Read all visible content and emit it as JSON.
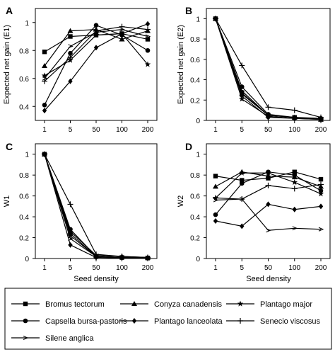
{
  "chart_data": [
    {
      "type": "line",
      "panel_label": "A",
      "xlabel": "",
      "ylabel": "Expected net gain (E1)",
      "categories": [
        "1",
        "5",
        "50",
        "100",
        "200"
      ],
      "ylim": [
        0.3,
        1.1
      ],
      "yticks": [
        "0.4",
        "0.6",
        "0.8",
        "1"
      ],
      "series": [
        {
          "name": "Bromus tectorum",
          "values": [
            0.79,
            0.9,
            0.91,
            0.92,
            0.88
          ]
        },
        {
          "name": "Conyza canadensis",
          "values": [
            0.69,
            0.94,
            0.95,
            0.88,
            0.94
          ]
        },
        {
          "name": "Plantago major",
          "values": [
            0.62,
            0.73,
            0.91,
            0.92,
            0.7
          ]
        },
        {
          "name": "Capsella bursa-pastoris",
          "values": [
            0.41,
            0.78,
            0.98,
            0.91,
            0.8
          ]
        },
        {
          "name": "Plantago lanceolata",
          "values": [
            0.37,
            0.58,
            0.82,
            0.92,
            0.99
          ]
        },
        {
          "name": "Senecio viscosus",
          "values": [
            0.58,
            0.75,
            0.94,
            0.97,
            0.95
          ]
        },
        {
          "name": "Silene anglica",
          "values": [
            0.6,
            0.83,
            0.93,
            0.95,
            0.9
          ]
        }
      ]
    },
    {
      "type": "line",
      "panel_label": "B",
      "xlabel": "",
      "ylabel": "Expected net gain (E2)",
      "categories": [
        "1",
        "5",
        "50",
        "100",
        "200"
      ],
      "ylim": [
        0,
        1.1
      ],
      "yticks": [
        "0",
        "0.2",
        "0.4",
        "0.6",
        "0.8",
        "1"
      ],
      "series": [
        {
          "name": "Bromus tectorum",
          "values": [
            1,
            0.27,
            0.05,
            0.03,
            0.01
          ]
        },
        {
          "name": "Conyza canadensis",
          "values": [
            1,
            0.26,
            0.05,
            0.03,
            0.01
          ]
        },
        {
          "name": "Plantago major",
          "values": [
            1,
            0.21,
            0.04,
            0.02,
            0.01
          ]
        },
        {
          "name": "Capsella bursa-pastoris",
          "values": [
            1,
            0.33,
            0.06,
            0.03,
            0.02
          ]
        },
        {
          "name": "Plantago lanceolata",
          "values": [
            1,
            0.24,
            0.03,
            0.02,
            0.01
          ]
        },
        {
          "name": "Senecio viscosus",
          "values": [
            1,
            0.54,
            0.13,
            0.1,
            0.03
          ]
        },
        {
          "name": "Silene anglica",
          "values": [
            1,
            0.29,
            0.05,
            0.03,
            0.01
          ]
        }
      ]
    },
    {
      "type": "line",
      "panel_label": "C",
      "xlabel": "Seed density",
      "ylabel": "W1",
      "categories": [
        "1",
        "5",
        "50",
        "100",
        "200"
      ],
      "ylim": [
        0,
        1.1
      ],
      "yticks": [
        "0",
        "0.2",
        "0.4",
        "0.6",
        "0.8",
        "1"
      ],
      "series": [
        {
          "name": "Bromus tectorum",
          "values": [
            1,
            0.24,
            0.02,
            0.01,
            0.005
          ]
        },
        {
          "name": "Conyza canadensis",
          "values": [
            1,
            0.26,
            0.03,
            0.02,
            0.01
          ]
        },
        {
          "name": "Plantago major",
          "values": [
            1,
            0.22,
            0.02,
            0.01,
            0.005
          ]
        },
        {
          "name": "Capsella bursa-pastoris",
          "values": [
            1,
            0.28,
            0.02,
            0.01,
            0.005
          ]
        },
        {
          "name": "Plantago lanceolata",
          "values": [
            1,
            0.13,
            0.01,
            0.005,
            0.003
          ]
        },
        {
          "name": "Senecio viscosus",
          "values": [
            1,
            0.52,
            0.04,
            0.02,
            0.01
          ]
        },
        {
          "name": "Silene anglica",
          "values": [
            1,
            0.19,
            0.02,
            0.01,
            0.005
          ]
        }
      ]
    },
    {
      "type": "line",
      "panel_label": "D",
      "xlabel": "Seed density",
      "ylabel": "W2",
      "categories": [
        "1",
        "5",
        "50",
        "100",
        "200"
      ],
      "ylim": [
        0,
        1.1
      ],
      "yticks": [
        "0",
        "0.2",
        "0.4",
        "0.6",
        "0.8",
        "1"
      ],
      "series": [
        {
          "name": "Bromus tectorum",
          "values": [
            0.79,
            0.75,
            0.77,
            0.83,
            0.76
          ]
        },
        {
          "name": "Conyza canadensis",
          "values": [
            0.69,
            0.83,
            0.79,
            0.78,
            0.69
          ]
        },
        {
          "name": "Plantago major",
          "values": [
            0.58,
            0.82,
            0.82,
            0.73,
            0.62
          ]
        },
        {
          "name": "Capsella bursa-pastoris",
          "values": [
            0.42,
            0.72,
            0.83,
            0.8,
            0.65
          ]
        },
        {
          "name": "Plantago lanceolata",
          "values": [
            0.36,
            0.31,
            0.52,
            0.47,
            0.5
          ]
        },
        {
          "name": "Senecio viscosus",
          "values": [
            0.58,
            0.57,
            0.7,
            0.67,
            0.71
          ]
        },
        {
          "name": "Silene anglica",
          "values": [
            0.56,
            0.57,
            0.27,
            0.29,
            0.28
          ]
        }
      ]
    }
  ],
  "legend": {
    "entries": [
      {
        "label": "Bromus tectorum",
        "marker": "square"
      },
      {
        "label": "Conyza canadensis",
        "marker": "triangle"
      },
      {
        "label": "Plantago major",
        "marker": "star"
      },
      {
        "label": "Capsella bursa-pastoris",
        "marker": "circle"
      },
      {
        "label": "Plantago lanceolata",
        "marker": "diamond"
      },
      {
        "label": "Senecio viscosus",
        "marker": "plus"
      },
      {
        "label": "Silene anglica",
        "marker": "arrow"
      }
    ]
  }
}
